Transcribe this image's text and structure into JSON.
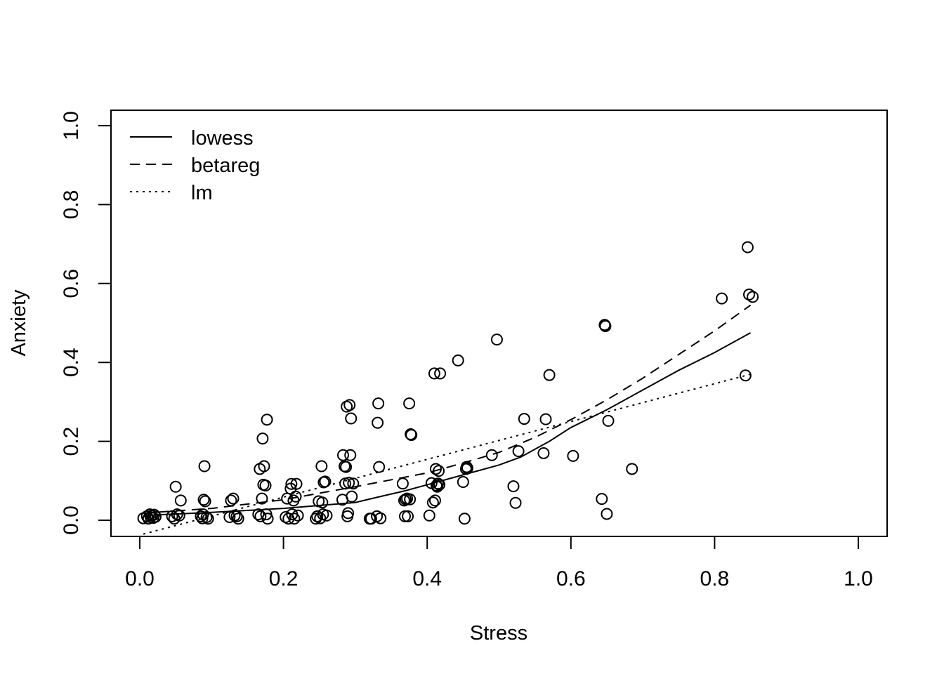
{
  "chart_data": {
    "type": "scatter",
    "title": "",
    "xlabel": "Stress",
    "ylabel": "Anxiety",
    "xlim": [
      0,
      1
    ],
    "ylim": [
      0,
      1
    ],
    "x_ticks": [
      "0.0",
      "0.2",
      "0.4",
      "0.6",
      "0.8",
      "1.0"
    ],
    "y_ticks": [
      "0.0",
      "0.2",
      "0.4",
      "0.6",
      "0.8",
      "1.0"
    ],
    "grid": false,
    "legend": {
      "position": "top-left",
      "entries": [
        {
          "label": "lowess",
          "dash": "solid"
        },
        {
          "label": "betareg",
          "dash": "dashed"
        },
        {
          "label": "lm",
          "dash": "dotted"
        }
      ]
    },
    "points": [
      [
        0.005,
        0.005
      ],
      [
        0.01,
        0.01
      ],
      [
        0.012,
        0.004
      ],
      [
        0.014,
        0.015
      ],
      [
        0.015,
        0.008
      ],
      [
        0.017,
        0.012
      ],
      [
        0.019,
        0.006
      ],
      [
        0.02,
        0.014
      ],
      [
        0.022,
        0.009
      ],
      [
        0.045,
        0.01
      ],
      [
        0.048,
        0.004
      ],
      [
        0.05,
        0.085
      ],
      [
        0.052,
        0.015
      ],
      [
        0.055,
        0.012
      ],
      [
        0.057,
        0.05
      ],
      [
        0.085,
        0.01
      ],
      [
        0.087,
        0.005
      ],
      [
        0.088,
        0.015
      ],
      [
        0.089,
        0.052
      ],
      [
        0.09,
        0.137
      ],
      [
        0.091,
        0.048
      ],
      [
        0.093,
        0.008
      ],
      [
        0.095,
        0.004
      ],
      [
        0.125,
        0.008
      ],
      [
        0.127,
        0.05
      ],
      [
        0.13,
        0.055
      ],
      [
        0.132,
        0.012
      ],
      [
        0.135,
        0.01
      ],
      [
        0.137,
        0.004
      ],
      [
        0.165,
        0.015
      ],
      [
        0.167,
        0.13
      ],
      [
        0.168,
        0.01
      ],
      [
        0.17,
        0.055
      ],
      [
        0.171,
        0.207
      ],
      [
        0.172,
        0.09
      ],
      [
        0.173,
        0.137
      ],
      [
        0.175,
        0.088
      ],
      [
        0.176,
        0.015
      ],
      [
        0.177,
        0.255
      ],
      [
        0.178,
        0.004
      ],
      [
        0.203,
        0.008
      ],
      [
        0.205,
        0.055
      ],
      [
        0.207,
        0.004
      ],
      [
        0.21,
        0.08
      ],
      [
        0.211,
        0.092
      ],
      [
        0.212,
        0.015
      ],
      [
        0.214,
        0.05
      ],
      [
        0.215,
        0.004
      ],
      [
        0.217,
        0.06
      ],
      [
        0.218,
        0.092
      ],
      [
        0.22,
        0.012
      ],
      [
        0.245,
        0.004
      ],
      [
        0.247,
        0.01
      ],
      [
        0.249,
        0.048
      ],
      [
        0.251,
        0.005
      ],
      [
        0.253,
        0.137
      ],
      [
        0.254,
        0.045
      ],
      [
        0.255,
        0.015
      ],
      [
        0.256,
        0.096
      ],
      [
        0.258,
        0.098
      ],
      [
        0.26,
        0.012
      ],
      [
        0.282,
        0.052
      ],
      [
        0.283,
        0.165
      ],
      [
        0.285,
        0.137
      ],
      [
        0.286,
        0.093
      ],
      [
        0.287,
        0.135
      ],
      [
        0.288,
        0.288
      ],
      [
        0.289,
        0.01
      ],
      [
        0.29,
        0.018
      ],
      [
        0.291,
        0.095
      ],
      [
        0.292,
        0.292
      ],
      [
        0.293,
        0.165
      ],
      [
        0.294,
        0.258
      ],
      [
        0.295,
        0.06
      ],
      [
        0.297,
        0.093
      ],
      [
        0.32,
        0.004
      ],
      [
        0.322,
        0.004
      ],
      [
        0.33,
        0.01
      ],
      [
        0.331,
        0.247
      ],
      [
        0.332,
        0.296
      ],
      [
        0.333,
        0.135
      ],
      [
        0.335,
        0.005
      ],
      [
        0.366,
        0.093
      ],
      [
        0.368,
        0.05
      ],
      [
        0.369,
        0.01
      ],
      [
        0.37,
        0.053
      ],
      [
        0.372,
        0.055
      ],
      [
        0.373,
        0.01
      ],
      [
        0.375,
        0.296
      ],
      [
        0.376,
        0.053
      ],
      [
        0.377,
        0.218
      ],
      [
        0.378,
        0.216
      ],
      [
        0.403,
        0.012
      ],
      [
        0.406,
        0.094
      ],
      [
        0.408,
        0.045
      ],
      [
        0.41,
        0.372
      ],
      [
        0.411,
        0.05
      ],
      [
        0.412,
        0.13
      ],
      [
        0.413,
        0.088
      ],
      [
        0.414,
        0.085
      ],
      [
        0.415,
        0.093
      ],
      [
        0.416,
        0.125
      ],
      [
        0.417,
        0.09
      ],
      [
        0.418,
        0.372
      ],
      [
        0.443,
        0.405
      ],
      [
        0.45,
        0.097
      ],
      [
        0.452,
        0.004
      ],
      [
        0.454,
        0.13
      ],
      [
        0.455,
        0.135
      ],
      [
        0.456,
        0.132
      ],
      [
        0.49,
        0.165
      ],
      [
        0.497,
        0.458
      ],
      [
        0.52,
        0.086
      ],
      [
        0.523,
        0.044
      ],
      [
        0.527,
        0.175
      ],
      [
        0.535,
        0.257
      ],
      [
        0.562,
        0.17
      ],
      [
        0.565,
        0.256
      ],
      [
        0.57,
        0.368
      ],
      [
        0.603,
        0.163
      ],
      [
        0.643,
        0.054
      ],
      [
        0.647,
        0.495
      ],
      [
        0.648,
        0.492
      ],
      [
        0.65,
        0.016
      ],
      [
        0.652,
        0.252
      ],
      [
        0.685,
        0.13
      ],
      [
        0.81,
        0.562
      ],
      [
        0.843,
        0.367
      ],
      [
        0.846,
        0.692
      ],
      [
        0.848,
        0.572
      ],
      [
        0.853,
        0.566
      ]
    ],
    "series": [
      {
        "name": "lowess",
        "dash": "solid",
        "x": [
          0.005,
          0.1,
          0.2,
          0.3,
          0.33,
          0.37,
          0.4,
          0.45,
          0.5,
          0.53,
          0.57,
          0.6,
          0.65,
          0.7,
          0.75,
          0.8,
          0.85
        ],
        "y": [
          0.012,
          0.02,
          0.03,
          0.045,
          0.058,
          0.075,
          0.09,
          0.115,
          0.14,
          0.16,
          0.2,
          0.235,
          0.28,
          0.33,
          0.38,
          0.425,
          0.475
        ]
      },
      {
        "name": "betareg",
        "dash": "dashed",
        "x": [
          0.005,
          0.1,
          0.2,
          0.3,
          0.4,
          0.45,
          0.5,
          0.55,
          0.6,
          0.65,
          0.7,
          0.75,
          0.8,
          0.85
        ],
        "y": [
          0.018,
          0.03,
          0.052,
          0.085,
          0.12,
          0.145,
          0.172,
          0.21,
          0.255,
          0.305,
          0.36,
          0.42,
          0.48,
          0.545
        ]
      },
      {
        "name": "lm",
        "dash": "dotted",
        "x": [
          0.005,
          0.85
        ],
        "y": [
          -0.035,
          0.37
        ]
      }
    ]
  }
}
